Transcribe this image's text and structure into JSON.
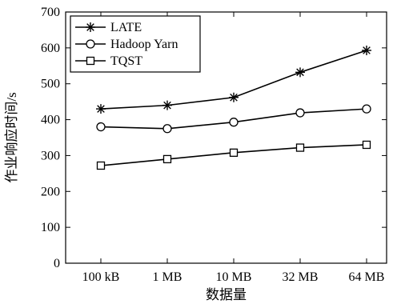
{
  "chart_data": {
    "type": "line",
    "categories": [
      "100 kB",
      "1 MB",
      "10 MB",
      "32 MB",
      "64 MB"
    ],
    "series": [
      {
        "name": "LATE",
        "marker": "asterisk",
        "values": [
          430,
          440,
          462,
          532,
          593
        ]
      },
      {
        "name": "Hadoop Yarn",
        "marker": "circle",
        "values": [
          380,
          375,
          393,
          419,
          430
        ]
      },
      {
        "name": "TQST",
        "marker": "square",
        "values": [
          272,
          290,
          308,
          322,
          330
        ]
      }
    ],
    "xlabel": "数据量",
    "ylabel": "作业响应时间/s",
    "ylim": [
      0,
      700
    ],
    "yticks": [
      "0",
      "100",
      "200",
      "300",
      "400",
      "500",
      "600",
      "700"
    ],
    "grid": false,
    "legend_position": "top-left",
    "line_color": "#000000"
  }
}
